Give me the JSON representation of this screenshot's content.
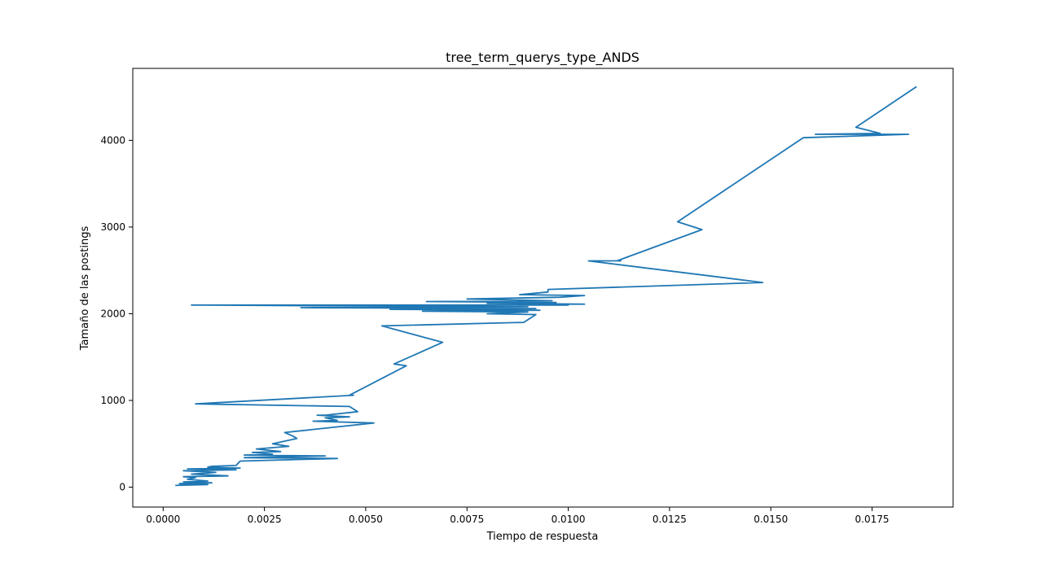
{
  "chart_data": {
    "type": "line",
    "title": "tree_term_querys_type_ANDS",
    "xlabel": "Tiempo de respuesta",
    "ylabel": "Tamaño de las postings",
    "xlim": [
      -0.00075,
      0.0195
    ],
    "ylim": [
      -230,
      4830
    ],
    "grid": false,
    "legend": "none",
    "xticks": [
      0.0,
      0.0025,
      0.005,
      0.0075,
      0.01,
      0.0125,
      0.015,
      0.0175
    ],
    "xtick_labels": [
      "0.0000",
      "0.0025",
      "0.0050",
      "0.0075",
      "0.0100",
      "0.0125",
      "0.0150",
      "0.0175"
    ],
    "yticks": [
      0,
      1000,
      2000,
      3000,
      4000
    ],
    "ytick_labels": [
      "0",
      "1000",
      "2000",
      "3000",
      "4000"
    ],
    "colors": {
      "line": "#1f77b4",
      "axes": "#000000",
      "background": "#ffffff"
    },
    "series": [
      {
        "values": [
          [
            0.0003,
            20
          ],
          [
            0.0011,
            30
          ],
          [
            0.0004,
            40
          ],
          [
            0.0012,
            50
          ],
          [
            0.0005,
            60
          ],
          [
            0.0011,
            70
          ],
          [
            0.0006,
            90
          ],
          [
            0.0008,
            110
          ],
          [
            0.0005,
            120
          ],
          [
            0.0016,
            130
          ],
          [
            0.0007,
            150
          ],
          [
            0.0013,
            170
          ],
          [
            0.0005,
            190
          ],
          [
            0.0018,
            200
          ],
          [
            0.0006,
            210
          ],
          [
            0.0019,
            220
          ],
          [
            0.0011,
            230
          ],
          [
            0.0012,
            240
          ],
          [
            0.0018,
            250
          ],
          [
            0.0019,
            300
          ],
          [
            0.0043,
            330
          ],
          [
            0.002,
            340
          ],
          [
            0.004,
            360
          ],
          [
            0.002,
            370
          ],
          [
            0.0027,
            380
          ],
          [
            0.0022,
            400
          ],
          [
            0.0029,
            410
          ],
          [
            0.0023,
            440
          ],
          [
            0.0031,
            470
          ],
          [
            0.0027,
            500
          ],
          [
            0.0033,
            560
          ],
          [
            0.0032,
            590
          ],
          [
            0.003,
            630
          ],
          [
            0.0052,
            740
          ],
          [
            0.0037,
            760
          ],
          [
            0.0043,
            770
          ],
          [
            0.004,
            800
          ],
          [
            0.0046,
            810
          ],
          [
            0.0038,
            830
          ],
          [
            0.004,
            830
          ],
          [
            0.0048,
            870
          ],
          [
            0.0046,
            930
          ],
          [
            0.0008,
            960
          ],
          [
            0.0047,
            1060
          ],
          [
            0.0046,
            1060
          ],
          [
            0.006,
            1400
          ],
          [
            0.0057,
            1420
          ],
          [
            0.0069,
            1670
          ],
          [
            0.0054,
            1860
          ],
          [
            0.0089,
            1900
          ],
          [
            0.0092,
            1990
          ],
          [
            0.008,
            2000
          ],
          [
            0.009,
            2020
          ],
          [
            0.0064,
            2030
          ],
          [
            0.0093,
            2040
          ],
          [
            0.0056,
            2050
          ],
          [
            0.0092,
            2060
          ],
          [
            0.0034,
            2070
          ],
          [
            0.009,
            2080
          ],
          [
            0.0007,
            2100
          ],
          [
            0.01,
            2100
          ],
          [
            0.0084,
            2110
          ],
          [
            0.0104,
            2110
          ],
          [
            0.008,
            2120
          ],
          [
            0.0097,
            2130
          ],
          [
            0.0065,
            2140
          ],
          [
            0.0096,
            2150
          ],
          [
            0.0075,
            2170
          ],
          [
            0.0098,
            2190
          ],
          [
            0.0104,
            2210
          ],
          [
            0.0088,
            2220
          ],
          [
            0.0095,
            2250
          ],
          [
            0.0095,
            2280
          ],
          [
            0.0148,
            2360
          ],
          [
            0.0105,
            2610
          ],
          [
            0.0113,
            2610
          ],
          [
            0.0112,
            2610
          ],
          [
            0.0133,
            2970
          ],
          [
            0.0127,
            3060
          ],
          [
            0.0158,
            4030
          ],
          [
            0.0184,
            4070
          ],
          [
            0.0161,
            4070
          ],
          [
            0.0177,
            4080
          ],
          [
            0.0171,
            4150
          ],
          [
            0.0186,
            4620
          ]
        ]
      }
    ]
  }
}
